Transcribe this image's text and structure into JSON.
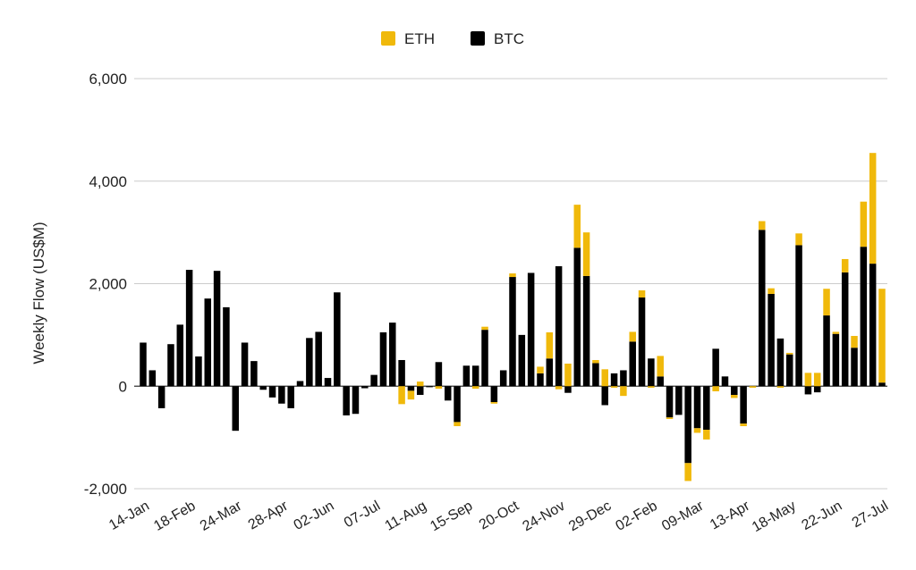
{
  "chart_data": {
    "type": "bar",
    "stacked": true,
    "title": "",
    "xlabel": "",
    "ylabel": "Weekly Flow (US$M)",
    "ylim": [
      -2000,
      6000
    ],
    "yticks": [
      -2000,
      0,
      2000,
      4000,
      6000
    ],
    "ytick_labels": [
      "-2,000",
      "0",
      "2,000",
      "4,000",
      "6,000"
    ],
    "grid": true,
    "legend_position": "top",
    "xtick_labels": [
      "14-Jan",
      "18-Feb",
      "24-Mar",
      "28-Apr",
      "02-Jun",
      "07-Jul",
      "11-Aug",
      "15-Sep",
      "20-Oct",
      "24-Nov",
      "29-Dec",
      "02-Feb",
      "09-Mar",
      "13-Apr",
      "18-May",
      "22-Jun",
      "27-Jul"
    ],
    "xtick_every": 5,
    "series": [
      {
        "name": "BTC",
        "color": "#000000",
        "values": [
          850,
          310,
          -430,
          820,
          1200,
          2270,
          580,
          1710,
          2250,
          1540,
          -870,
          850,
          490,
          -70,
          -220,
          -340,
          -430,
          100,
          940,
          1060,
          160,
          1830,
          -570,
          -540,
          -40,
          220,
          1050,
          1240,
          510,
          -90,
          -170,
          -20,
          470,
          -280,
          -700,
          400,
          400,
          1100,
          -310,
          310,
          2130,
          1000,
          2210,
          250,
          540,
          2340,
          -130,
          2700,
          2150,
          450,
          -370,
          250,
          310,
          870,
          1730,
          540,
          190,
          -610,
          -560,
          -1500,
          -820,
          -850,
          730,
          190,
          -170,
          -730,
          0,
          3050,
          1800,
          930,
          620,
          2750,
          -160,
          -120,
          1380,
          1020,
          2220,
          750,
          2720,
          2390,
          70
        ]
      },
      {
        "name": "ETH",
        "color": "#F0B90B",
        "values": [
          0,
          0,
          0,
          0,
          0,
          0,
          0,
          0,
          0,
          0,
          0,
          0,
          0,
          0,
          0,
          0,
          0,
          0,
          0,
          0,
          0,
          0,
          0,
          0,
          0,
          0,
          0,
          0,
          -350,
          -170,
          90,
          0,
          -50,
          0,
          -80,
          0,
          -50,
          60,
          -30,
          0,
          70,
          0,
          0,
          130,
          510,
          -60,
          440,
          840,
          850,
          60,
          330,
          -30,
          -190,
          190,
          140,
          -30,
          400,
          -30,
          0,
          -350,
          -90,
          -190,
          -100,
          0,
          -60,
          -50,
          -30,
          170,
          110,
          -30,
          30,
          230,
          260,
          260,
          520,
          40,
          260,
          230,
          880,
          2160,
          1830
        ]
      }
    ]
  }
}
